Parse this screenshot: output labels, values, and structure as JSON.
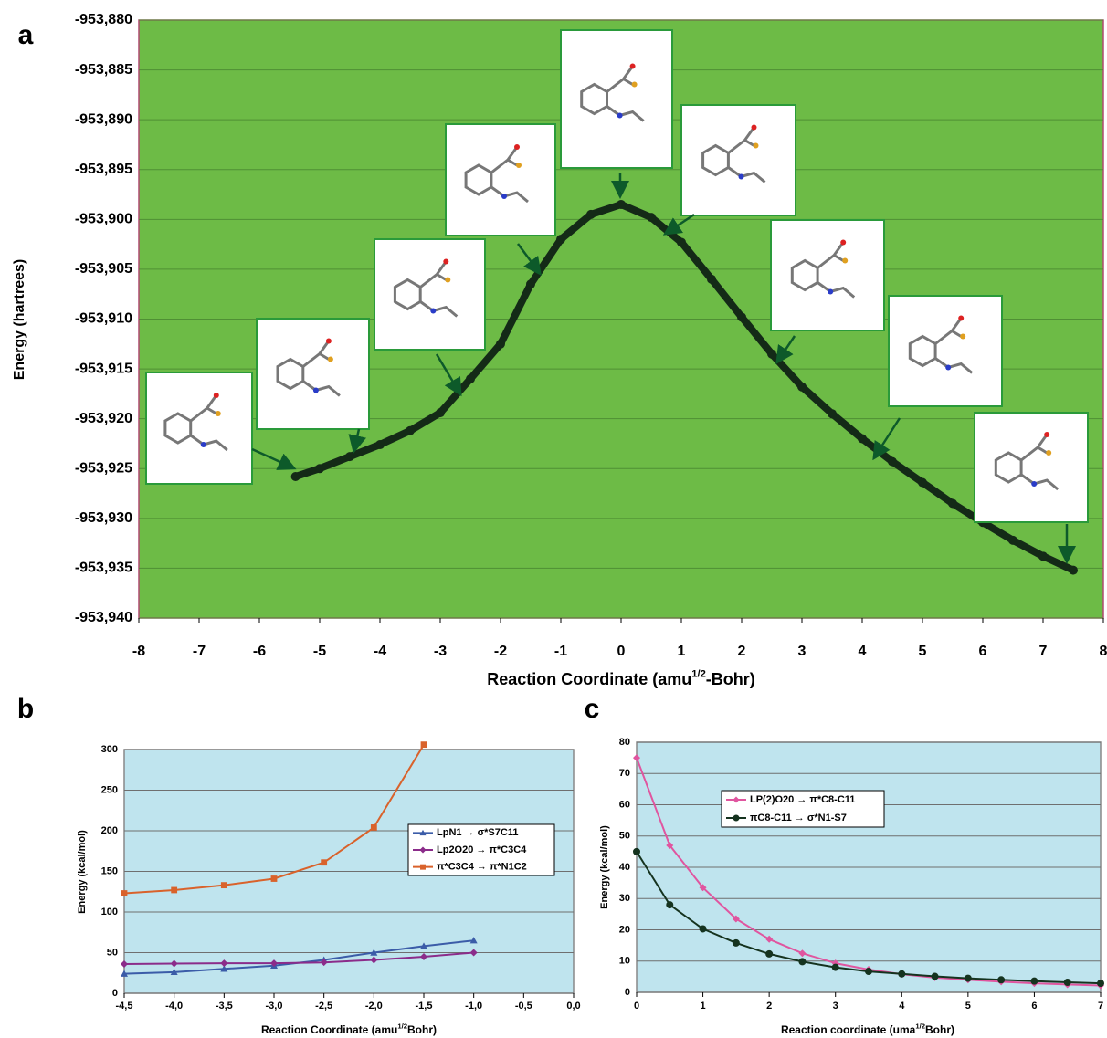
{
  "chart_data": [
    {
      "type": "line",
      "panel": "a",
      "ylabel": "Energy (hartrees)",
      "xlabel": [
        "Reaction Coordinate (amu",
        "1/2",
        "-Bohr)"
      ],
      "background": "#6dbb46",
      "border": "#b04a70",
      "grid": true,
      "color": "#142a17",
      "marker": "circle",
      "x": [
        -5.4,
        -5,
        -4.5,
        -4,
        -3.5,
        -3,
        -2.5,
        -2,
        -1.5,
        -1,
        -0.5,
        0,
        0.5,
        1,
        1.5,
        2,
        2.5,
        3,
        3.5,
        4,
        4.5,
        5,
        5.5,
        6,
        6.5,
        7,
        7.5
      ],
      "values": [
        -953.9258,
        -953.925,
        -953.9238,
        -953.9226,
        -953.9212,
        -953.9194,
        -953.916,
        -953.9125,
        -953.9065,
        -953.902,
        -953.8995,
        -953.8985,
        -953.8998,
        -953.9023,
        -953.906,
        -953.9098,
        -953.9135,
        -953.9168,
        -953.9195,
        -953.922,
        -953.9243,
        -953.9264,
        -953.9285,
        -953.9304,
        -953.9322,
        -953.9338,
        -953.9352
      ],
      "xlim": [
        -8,
        8
      ],
      "xticks": [
        -8,
        -7,
        -6,
        -5,
        -4,
        -3,
        -2,
        -1,
        0,
        1,
        2,
        3,
        4,
        5,
        6,
        7,
        8
      ],
      "ylim": [
        -953.94,
        -953.88
      ],
      "yticks": [
        {
          "value": -953.88,
          "label": "-953,880"
        },
        {
          "value": -953.885,
          "label": "-953,885"
        },
        {
          "value": -953.89,
          "label": "-953,890"
        },
        {
          "value": -953.895,
          "label": "-953,895"
        },
        {
          "value": -953.9,
          "label": "-953,900"
        },
        {
          "value": -953.905,
          "label": "-953,905"
        },
        {
          "value": -953.91,
          "label": "-953,910"
        },
        {
          "value": -953.915,
          "label": "-953,915"
        },
        {
          "value": -953.92,
          "label": "-953,920"
        },
        {
          "value": -953.925,
          "label": "-953,925"
        },
        {
          "value": -953.93,
          "label": "-953,930"
        },
        {
          "value": -953.935,
          "label": "-953,935"
        },
        {
          "value": -953.94,
          "label": "-953,940"
        }
      ]
    },
    {
      "type": "line",
      "panel": "b",
      "ylabel": "Energy (kcal/mol)",
      "xlabel": [
        "Reaction Coordinate (amu",
        "1/2",
        "Bohr)"
      ],
      "background": "#bfe4ee",
      "border": "#888888",
      "grid": true,
      "x": [
        -4.5,
        -4,
        -3.5,
        -3,
        -2.5,
        -2,
        -1.5,
        -1
      ],
      "series": [
        {
          "name": "LpN1 → σ*S7C11",
          "color": "#3b5ca8",
          "marker": "triangle",
          "values": [
            24,
            26,
            30,
            34,
            41,
            50,
            58,
            65
          ]
        },
        {
          "name": "Lp2O20 → π*C3C4",
          "color": "#8b2c8a",
          "marker": "diamond",
          "values": [
            36,
            36.5,
            37,
            37,
            38,
            41,
            45,
            50
          ]
        },
        {
          "name": "π*C3C4 → π*N1C2",
          "color": "#d9622b",
          "marker": "square",
          "values": [
            123,
            127,
            133,
            141,
            161,
            204,
            306,
            null
          ]
        }
      ],
      "xlim": [
        -4.5,
        0
      ],
      "xticks": [
        {
          "value": -4.5,
          "label": "-4,5"
        },
        {
          "value": -4,
          "label": "-4,0"
        },
        {
          "value": -3.5,
          "label": "-3,5"
        },
        {
          "value": -3,
          "label": "-3,0"
        },
        {
          "value": -2.5,
          "label": "-2,5"
        },
        {
          "value": -2,
          "label": "-2,0"
        },
        {
          "value": -1.5,
          "label": "-1,5"
        },
        {
          "value": -1,
          "label": "-1,0"
        },
        {
          "value": -0.5,
          "label": "-0,5"
        },
        {
          "value": 0,
          "label": "0,0"
        }
      ],
      "ylim": [
        0,
        300
      ],
      "yticks": [
        0,
        50,
        100,
        150,
        200,
        250,
        300
      ]
    },
    {
      "type": "line",
      "panel": "c",
      "ylabel": "Energy (kcal/mol)",
      "xlabel": [
        "Reaction coordinate (uma",
        "1/2",
        "Bohr)"
      ],
      "background": "#bfe4ee",
      "border": "#888888",
      "grid": true,
      "x": [
        0,
        0.5,
        1,
        1.5,
        2,
        2.5,
        3,
        3.5,
        4,
        4.5,
        5,
        5.5,
        6,
        6.5,
        7
      ],
      "series": [
        {
          "name": "LP(2)O20 → π*C8-C11",
          "color": "#e0559f",
          "marker": "diamond",
          "values": [
            75,
            47,
            33.5,
            23.5,
            17,
            12.5,
            9.3,
            7.3,
            5.8,
            4.7,
            4,
            3.4,
            2.9,
            2.5,
            2.2
          ]
        },
        {
          "name": "πC8-C11 → σ*N1-S7",
          "color": "#15331f",
          "marker": "circle",
          "values": [
            45,
            28,
            20.3,
            15.8,
            12.3,
            9.8,
            8,
            6.7,
            5.9,
            5.1,
            4.5,
            4,
            3.6,
            3.2,
            2.9
          ]
        }
      ],
      "xlim": [
        0,
        7
      ],
      "xticks": [
        0,
        1,
        2,
        3,
        4,
        5,
        6,
        7
      ],
      "ylim": [
        0,
        80
      ],
      "yticks": [
        0,
        10,
        20,
        30,
        40,
        50,
        60,
        70,
        80
      ]
    }
  ]
}
